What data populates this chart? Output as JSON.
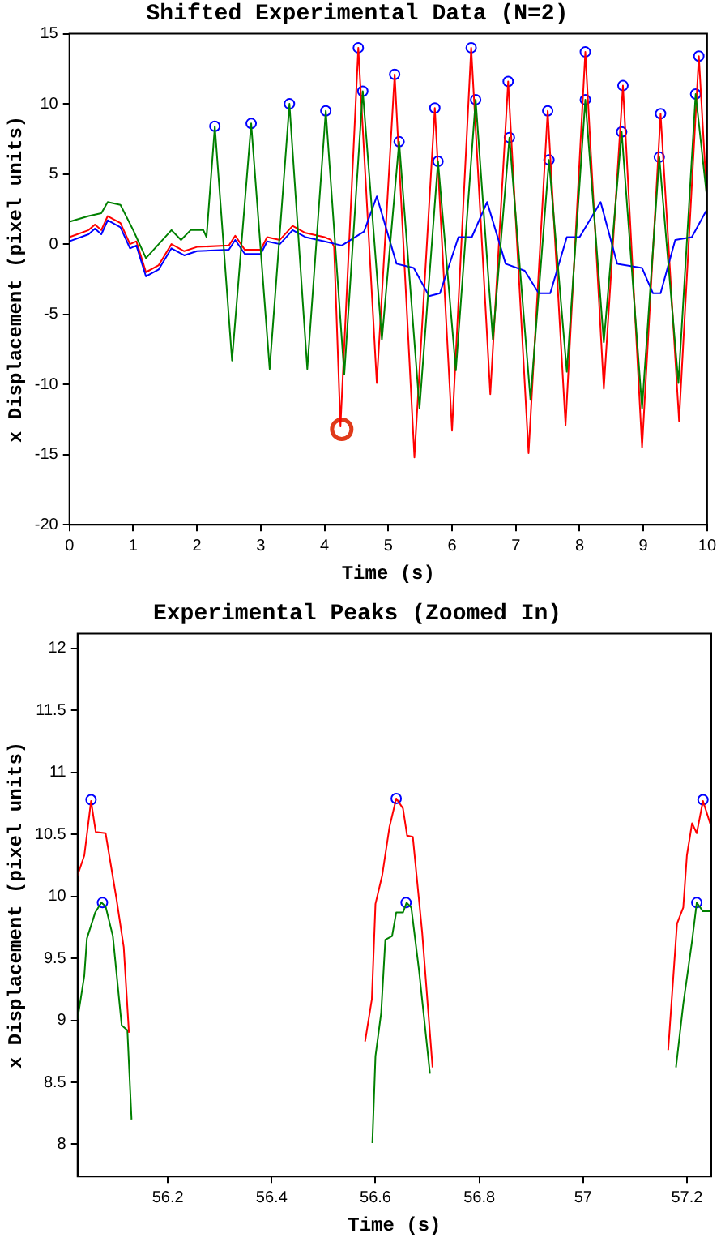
{
  "chart_data": [
    {
      "type": "line",
      "title": "Shifted Experimental Data (N=2)",
      "xlabel": "Time (s)",
      "ylabel": "x Displacement (pixel units)",
      "xlim": [
        0,
        10
      ],
      "ylim": [
        -20,
        15
      ],
      "xticks": [
        0,
        1,
        2,
        3,
        4,
        5,
        6,
        7,
        8,
        9,
        10
      ],
      "yticks": [
        -20,
        -15,
        -10,
        -5,
        0,
        5,
        10,
        15
      ],
      "grid": false,
      "legend": false,
      "series": [
        {
          "type": "line",
          "color": "#008000",
          "x": [
            0,
            0.3,
            0.5,
            0.6,
            0.8,
            1.0,
            1.2,
            1.4,
            1.6,
            1.75,
            1.9,
            2.1,
            2.15,
            2.28,
            2.55,
            2.85,
            3.14,
            3.45,
            3.73,
            4.02,
            4.31,
            4.6,
            4.9,
            5.17,
            5.49,
            5.78,
            6.06,
            6.37,
            6.64,
            6.9,
            7.23,
            7.52,
            7.8,
            8.09,
            8.38,
            8.66,
            8.98,
            9.25,
            9.55,
            9.82,
            10
          ],
          "values": [
            1.6,
            2.0,
            2.2,
            3.0,
            2.8,
            1.0,
            -1.0,
            0,
            1.0,
            0.3,
            1.0,
            1.0,
            0.5,
            8.4,
            -8.3,
            8.6,
            -8.9,
            10.0,
            -8.9,
            9.5,
            -9.3,
            10.9,
            -6.8,
            7.3,
            -11.7,
            5.9,
            -9.0,
            10.3,
            -6.8,
            7.6,
            -11.1,
            6.0,
            -9.1,
            10.3,
            -7.0,
            8.0,
            -11.7,
            6.2,
            -9.9,
            10.7,
            3.2
          ]
        },
        {
          "type": "line",
          "color": "#0000ff",
          "x": [
            0,
            0.3,
            0.4,
            0.5,
            0.6,
            0.8,
            0.95,
            1.05,
            1.2,
            1.4,
            1.6,
            1.8,
            2.0,
            2.5,
            2.6,
            2.75,
            3.0,
            3.1,
            3.3,
            3.5,
            3.7,
            4.0,
            4.27,
            4.62,
            4.82,
            5.13,
            5.4,
            5.64,
            5.81,
            6.1,
            6.31,
            6.55,
            6.84,
            7.14,
            7.36,
            7.54,
            7.8,
            8.0,
            8.33,
            8.59,
            8.98,
            9.15,
            9.27,
            9.5,
            9.76,
            10
          ],
          "values": [
            0.2,
            0.7,
            1.1,
            0.7,
            1.7,
            1.2,
            -0.3,
            -0.1,
            -2.3,
            -1.8,
            -0.3,
            -0.8,
            -0.5,
            -0.4,
            0.3,
            -0.7,
            -0.7,
            0.2,
            0.0,
            1.0,
            0.5,
            0.2,
            -0.1,
            0.9,
            3.4,
            -1.4,
            -1.7,
            -3.7,
            -3.5,
            0.5,
            0.5,
            3.0,
            -1.4,
            -1.9,
            -3.5,
            -3.5,
            0.5,
            0.5,
            3.0,
            -1.4,
            -1.7,
            -3.5,
            -3.5,
            0.3,
            0.5,
            2.5
          ]
        },
        {
          "type": "line",
          "color": "#ff0000",
          "x": [
            0,
            0.3,
            0.4,
            0.5,
            0.6,
            0.8,
            0.95,
            1.05,
            1.2,
            1.4,
            1.6,
            1.8,
            2.0,
            2.5,
            2.6,
            2.75,
            3.0,
            3.1,
            3.3,
            3.5,
            3.7,
            4.0,
            4.1,
            4.15,
            4.25,
            4.53,
            4.82,
            5.1,
            5.41,
            5.73,
            6.0,
            6.3,
            6.6,
            6.88,
            7.2,
            7.5,
            7.78,
            8.09,
            8.38,
            8.68,
            8.98,
            9.27,
            9.56,
            9.87,
            10
          ],
          "values": [
            0.5,
            1.0,
            1.4,
            1.0,
            2.0,
            1.5,
            0,
            0.2,
            -2.0,
            -1.5,
            0,
            -0.5,
            -0.2,
            -0.1,
            0.6,
            -0.4,
            -0.4,
            0.5,
            0.3,
            1.3,
            0.8,
            0.5,
            0.3,
            -0.2,
            -13.0,
            14.0,
            -9.9,
            12.1,
            -15.2,
            9.7,
            -13.3,
            14.0,
            -10.7,
            11.6,
            -14.9,
            9.5,
            -12.9,
            13.7,
            -10.3,
            11.3,
            -14.5,
            9.3,
            -12.6,
            13.4,
            2.9
          ]
        },
        {
          "type": "scatter",
          "marker": "circle",
          "color": "#0000ff",
          "x": [
            2.28,
            2.85,
            3.45,
            4.02,
            4.53,
            4.6,
            5.1,
            5.17,
            5.73,
            5.78,
            6.3,
            6.37,
            6.88,
            6.9,
            7.5,
            7.52,
            8.09,
            8.09,
            8.68,
            8.66,
            9.27,
            9.25,
            9.87,
            9.82
          ],
          "values": [
            8.4,
            8.6,
            10.0,
            9.5,
            14.0,
            10.9,
            12.1,
            7.3,
            9.7,
            5.9,
            14.0,
            10.3,
            11.6,
            7.6,
            9.5,
            6.0,
            13.7,
            10.3,
            11.3,
            8.0,
            9.3,
            6.2,
            13.4,
            10.7
          ]
        },
        {
          "type": "bubble",
          "marker": "circle",
          "color": "#e03a1a",
          "x": [
            4.27
          ],
          "values": [
            -13.2
          ],
          "sizes": [
            1
          ]
        }
      ]
    },
    {
      "type": "line",
      "title": "Experimental Peaks (Zoomed In)",
      "xlabel": "Time (s)",
      "ylabel": "x Displacement (pixel units)",
      "xlim": [
        56.026,
        57.247
      ],
      "ylim": [
        7.74,
        12.12
      ],
      "xticks": [
        56.2,
        56.4,
        56.6,
        56.8,
        57,
        57.2
      ],
      "yticks": [
        8,
        8.5,
        9,
        9.5,
        10,
        10.5,
        11,
        11.5,
        12
      ],
      "grid": false,
      "legend": false,
      "series": [
        {
          "type": "line",
          "color": "#ff0000",
          "x": [
            56.026,
            56.039,
            56.052,
            56.061,
            56.08,
            56.101,
            56.115,
            56.125,
            56.137,
            56.3,
            56.57,
            56.58,
            56.593,
            56.6,
            56.613,
            56.627,
            56.64,
            56.653,
            56.661,
            56.672,
            56.69,
            56.71,
            56.719,
            57.0,
            57.15,
            57.164,
            57.181,
            57.193,
            57.2,
            57.21,
            57.219,
            57.231,
            57.247
          ],
          "values": [
            10.17,
            10.33,
            10.77,
            10.52,
            10.51,
            9.98,
            9.59,
            8.9,
            null,
            null,
            null,
            8.83,
            9.17,
            9.94,
            10.17,
            10.56,
            10.79,
            10.71,
            10.49,
            10.48,
            9.71,
            8.62,
            null,
            null,
            null,
            8.76,
            9.78,
            9.91,
            10.33,
            10.59,
            10.51,
            10.77,
            10.56
          ]
        },
        {
          "type": "line",
          "color": "#008000",
          "x": [
            56.026,
            56.039,
            56.044,
            56.06,
            56.072,
            56.08,
            56.094,
            56.111,
            56.122,
            56.13,
            56.14,
            56.3,
            56.585,
            56.594,
            56.6,
            56.611,
            56.619,
            56.632,
            56.64,
            56.653,
            56.66,
            56.669,
            56.684,
            56.705,
            56.721,
            57.0,
            57.167,
            57.179,
            57.193,
            57.21,
            57.219,
            57.231,
            57.247
          ],
          "values": [
            9.01,
            9.36,
            9.66,
            9.87,
            9.95,
            9.92,
            9.68,
            8.96,
            8.92,
            8.2,
            null,
            null,
            null,
            8.01,
            8.71,
            9.06,
            9.65,
            9.68,
            9.87,
            9.87,
            9.95,
            9.91,
            9.4,
            8.57,
            null,
            null,
            null,
            8.62,
            9.13,
            9.64,
            9.95,
            9.88,
            9.88
          ]
        },
        {
          "type": "scatter",
          "marker": "circle",
          "color": "#0000ff",
          "x": [
            56.052,
            56.64,
            57.231,
            56.074,
            56.659,
            57.219
          ],
          "values": [
            10.78,
            10.79,
            10.78,
            9.95,
            9.95,
            9.95
          ]
        }
      ]
    }
  ]
}
